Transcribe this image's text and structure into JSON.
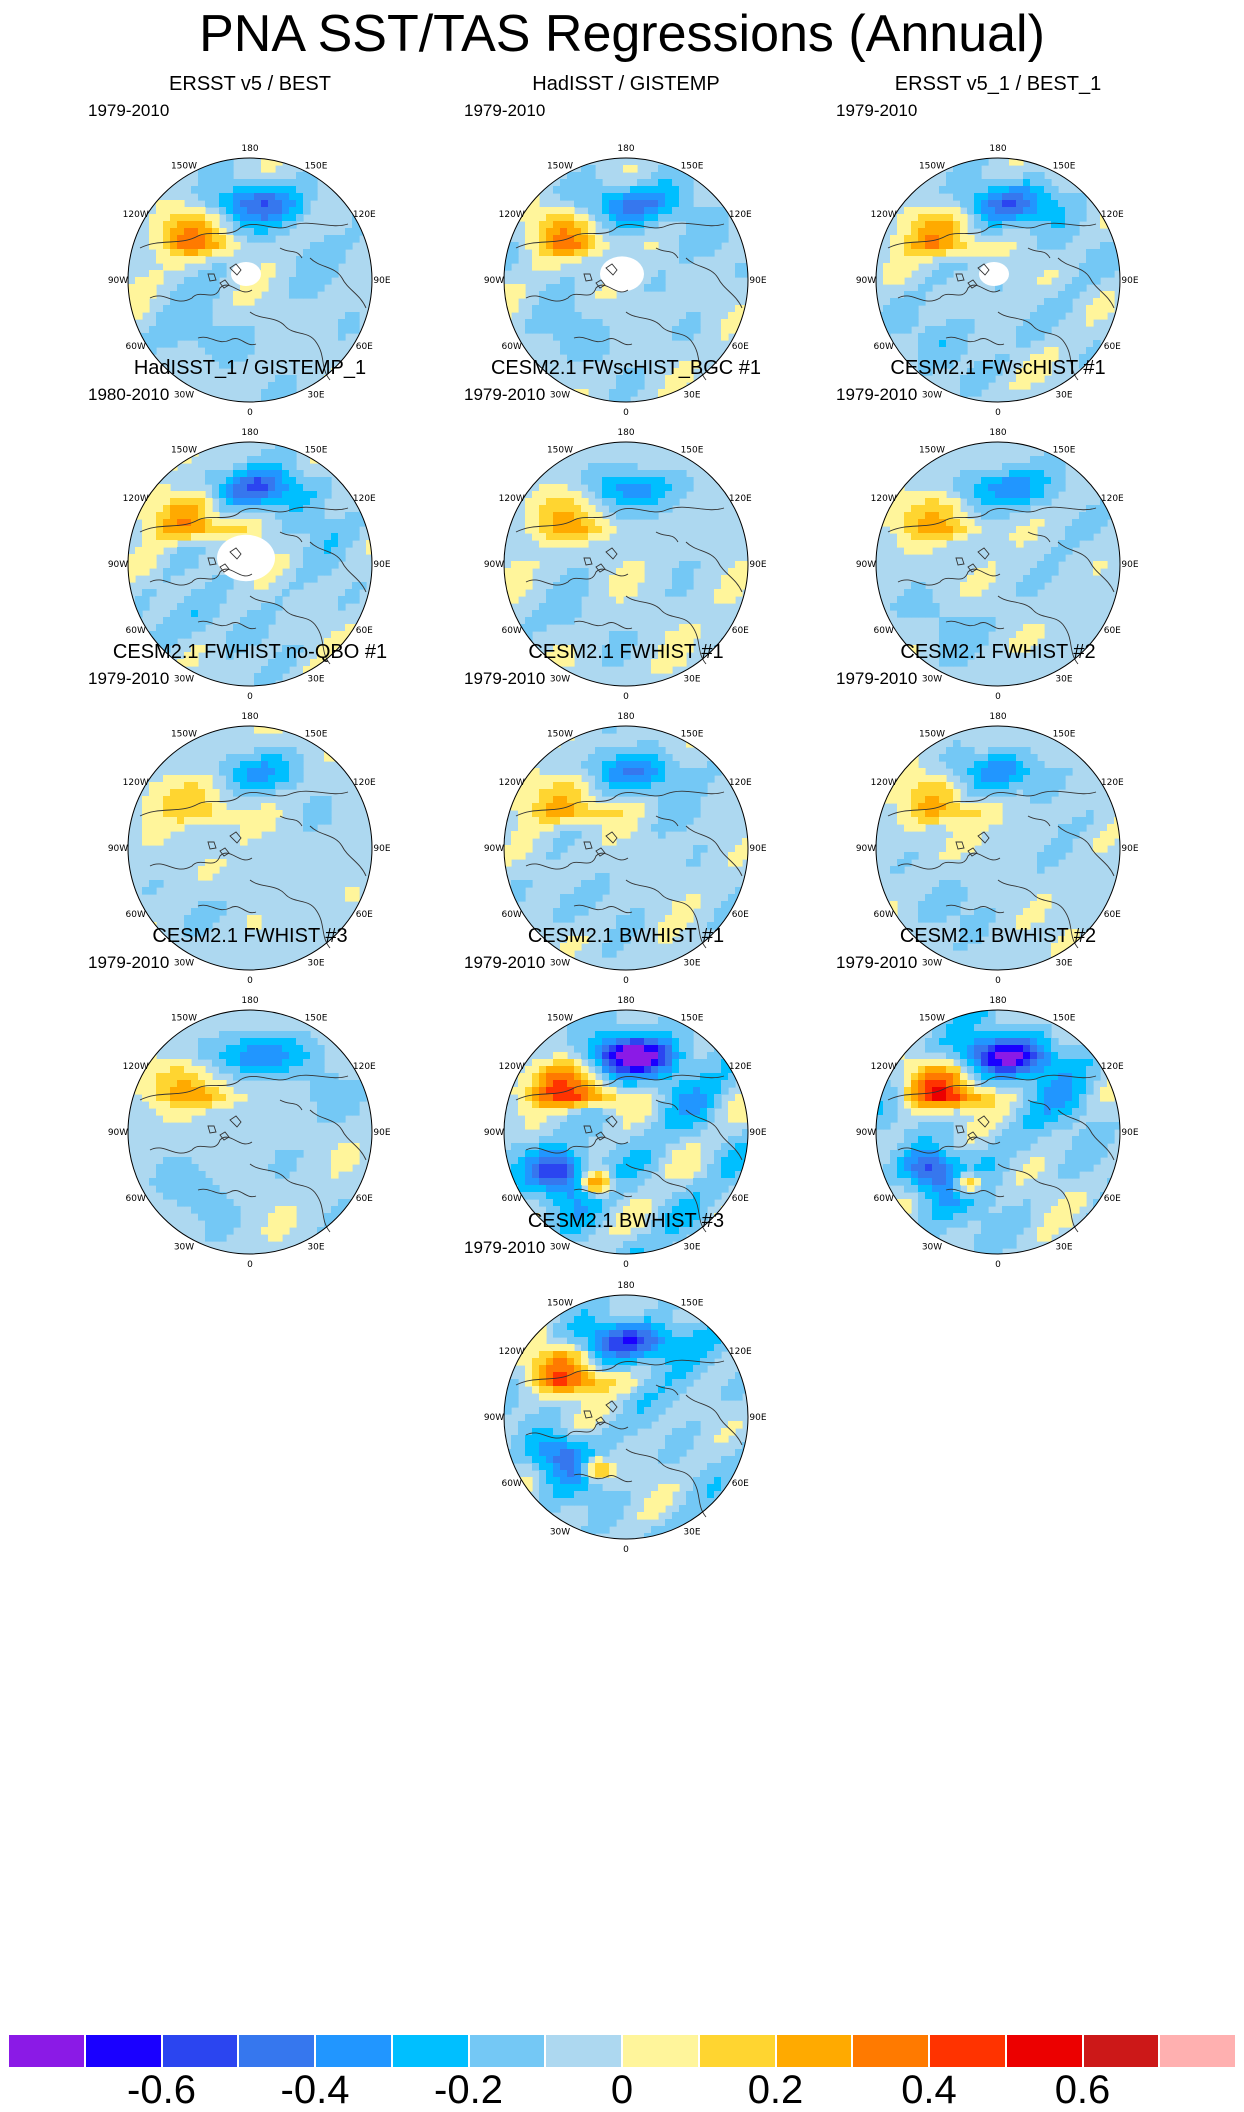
{
  "title": "PNA SST/TAS Regressions (Annual)",
  "lon_labels": [
    "180",
    "150E",
    "120E",
    "90E",
    "60E",
    "30E",
    "0",
    "30W",
    "60W",
    "90W",
    "120W",
    "150W"
  ],
  "panels": [
    {
      "title": "ERSST v5 / BEST",
      "period": "1979-2010",
      "style": "obs",
      "amp": 0.95,
      "missing": 1,
      "seed": 1
    },
    {
      "title": "HadISST / GISTEMP",
      "period": "1979-2010",
      "style": "obs",
      "amp": 0.9,
      "missing": 2,
      "seed": 2
    },
    {
      "title": "ERSST v5_1 / BEST_1",
      "period": "1979-2010",
      "style": "obs",
      "amp": 0.95,
      "missing": 1,
      "seed": 3
    },
    {
      "title": "HadISST_1 / GISTEMP_1",
      "period": "1980-2010",
      "style": "obs",
      "amp": 1.0,
      "missing": 3,
      "seed": 4
    },
    {
      "title": "CESM2.1 FWscHIST_BGC #1",
      "period": "1979-2010",
      "style": "weak",
      "amp": 0.7,
      "missing": 0,
      "seed": 5
    },
    {
      "title": "CESM2.1 FWscHIST #1",
      "period": "1979-2010",
      "style": "weak",
      "amp": 0.75,
      "missing": 0,
      "seed": 6
    },
    {
      "title": "CESM2.1 FWHIST no-QBO #1",
      "period": "1979-2010",
      "style": "weak",
      "amp": 0.6,
      "missing": 0,
      "seed": 7
    },
    {
      "title": "CESM2.1 FWHIST #1",
      "period": "1979-2010",
      "style": "weak",
      "amp": 0.8,
      "missing": 0,
      "seed": 8
    },
    {
      "title": "CESM2.1 FWHIST #2",
      "period": "1979-2010",
      "style": "weak",
      "amp": 0.7,
      "missing": 0,
      "seed": 9
    },
    {
      "title": "CESM2.1 FWHIST #3",
      "period": "1979-2010",
      "style": "weak",
      "amp": 0.85,
      "missing": 0,
      "seed": 10
    },
    {
      "title": "CESM2.1 BWHIST #1",
      "period": "1979-2010",
      "style": "strong",
      "amp": 1.6,
      "missing": 0,
      "seed": 11
    },
    {
      "title": "CESM2.1 BWHIST #2",
      "period": "1979-2010",
      "style": "strong",
      "amp": 1.5,
      "missing": 0,
      "seed": 12
    },
    {
      "title": "CESM2.1 BWHIST #3",
      "period": "1979-2010",
      "style": "strong",
      "amp": 1.25,
      "missing": 0,
      "seed": 13
    }
  ],
  "colorbar": {
    "levels": [
      -0.7,
      -0.6,
      -0.5,
      -0.4,
      -0.3,
      -0.2,
      -0.1,
      0,
      0.1,
      0.2,
      0.3,
      0.4,
      0.5,
      0.6,
      0.7
    ],
    "colors": [
      "#8b1ae6",
      "#1a00ff",
      "#2b45f0",
      "#3677ee",
      "#2196ff",
      "#00bfff",
      "#74c8f5",
      "#add8f0",
      "#fff59b",
      "#ffd530",
      "#ffaa00",
      "#ff7a00",
      "#ff3300",
      "#ec0000",
      "#cc1818",
      "#ffb0b0"
    ],
    "labels": [
      "-0.6",
      "-0.4",
      "-0.2",
      "0",
      "0.2",
      "0.4",
      "0.6"
    ]
  }
}
